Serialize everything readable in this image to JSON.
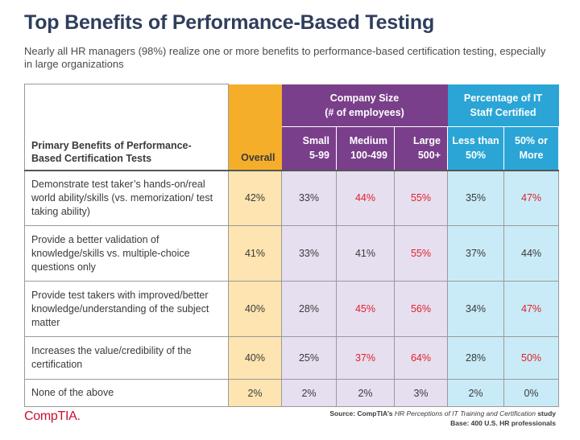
{
  "title": "Top Benefits of Performance-Based Testing",
  "subtitle": "Nearly all HR managers (98%) realize one or more benefits to performance-based certification testing, especially in large organizations",
  "chart_data": {
    "type": "table",
    "title": "Top Benefits of Performance-Based Testing",
    "row_header": "Primary Benefits of Performance-Based Certification Tests",
    "groups": [
      {
        "name": "",
        "columns": [
          "Overall"
        ]
      },
      {
        "name": "Company Size (# of employees)",
        "columns": [
          "Small 5-99",
          "Medium 100-499",
          "Large 500+"
        ]
      },
      {
        "name": "Percentage of IT Staff Certified",
        "columns": [
          "Less than 50%",
          "50% or More"
        ]
      }
    ],
    "columns": [
      {
        "line1": "Overall",
        "line2": ""
      },
      {
        "line1": "Small",
        "line2": "5-99"
      },
      {
        "line1": "Medium",
        "line2": "100-499"
      },
      {
        "line1": "Large",
        "line2": "500+"
      },
      {
        "line1": "Less than",
        "line2": "50%"
      },
      {
        "line1": "50% or",
        "line2": "More"
      }
    ],
    "group_headers": {
      "company_size": {
        "line1": "Company Size",
        "line2": "(# of employees)"
      },
      "it_staff": {
        "line1": "Percentage of IT",
        "line2": "Staff Certified"
      }
    },
    "rows": [
      {
        "label": "Demonstrate test taker’s hands-on/real world ability/skills (vs. memorization/ test taking ability)",
        "values": [
          "42%",
          "33%",
          "44%",
          "55%",
          "35%",
          "47%"
        ],
        "highlight": [
          false,
          false,
          true,
          true,
          false,
          true
        ]
      },
      {
        "label": "Provide a better validation of knowledge/skills vs. multiple-choice questions only",
        "values": [
          "41%",
          "33%",
          "41%",
          "55%",
          "37%",
          "44%"
        ],
        "highlight": [
          false,
          false,
          false,
          true,
          false,
          false
        ]
      },
      {
        "label": "Provide test takers with improved/better knowledge/understanding of the subject matter",
        "values": [
          "40%",
          "28%",
          "45%",
          "56%",
          "34%",
          "47%"
        ],
        "highlight": [
          false,
          false,
          true,
          true,
          false,
          true
        ]
      },
      {
        "label": "Increases the value/credibility of the certification",
        "values": [
          "40%",
          "25%",
          "37%",
          "64%",
          "28%",
          "50%"
        ],
        "highlight": [
          false,
          false,
          true,
          true,
          false,
          true
        ]
      },
      {
        "label": "None of the above",
        "values": [
          "2%",
          "2%",
          "2%",
          "3%",
          "2%",
          "0%"
        ],
        "highlight": [
          false,
          false,
          false,
          false,
          false,
          false
        ]
      }
    ]
  },
  "header": {
    "row_header_line1": "Primary Benefits of Performance-",
    "row_header_line2": "Based Certification Tests"
  },
  "footer": {
    "logo": "CompTIA.",
    "source_prefix": "Source: CompTIA’s ",
    "source_title": "HR Perceptions of IT Training and Certification",
    "source_suffix": " study",
    "base": "Base: 400 U.S. HR professionals"
  },
  "colors": {
    "title": "#2f3e5c",
    "overall": "#f5ae2a",
    "overall_light": "#fde4b0",
    "company": "#7a3f8a",
    "company_light": "#e6dff0",
    "staff": "#2aa5d6",
    "staff_light": "#c9ebf7",
    "highlight": "#e3202a",
    "logo": "#c8102e"
  }
}
